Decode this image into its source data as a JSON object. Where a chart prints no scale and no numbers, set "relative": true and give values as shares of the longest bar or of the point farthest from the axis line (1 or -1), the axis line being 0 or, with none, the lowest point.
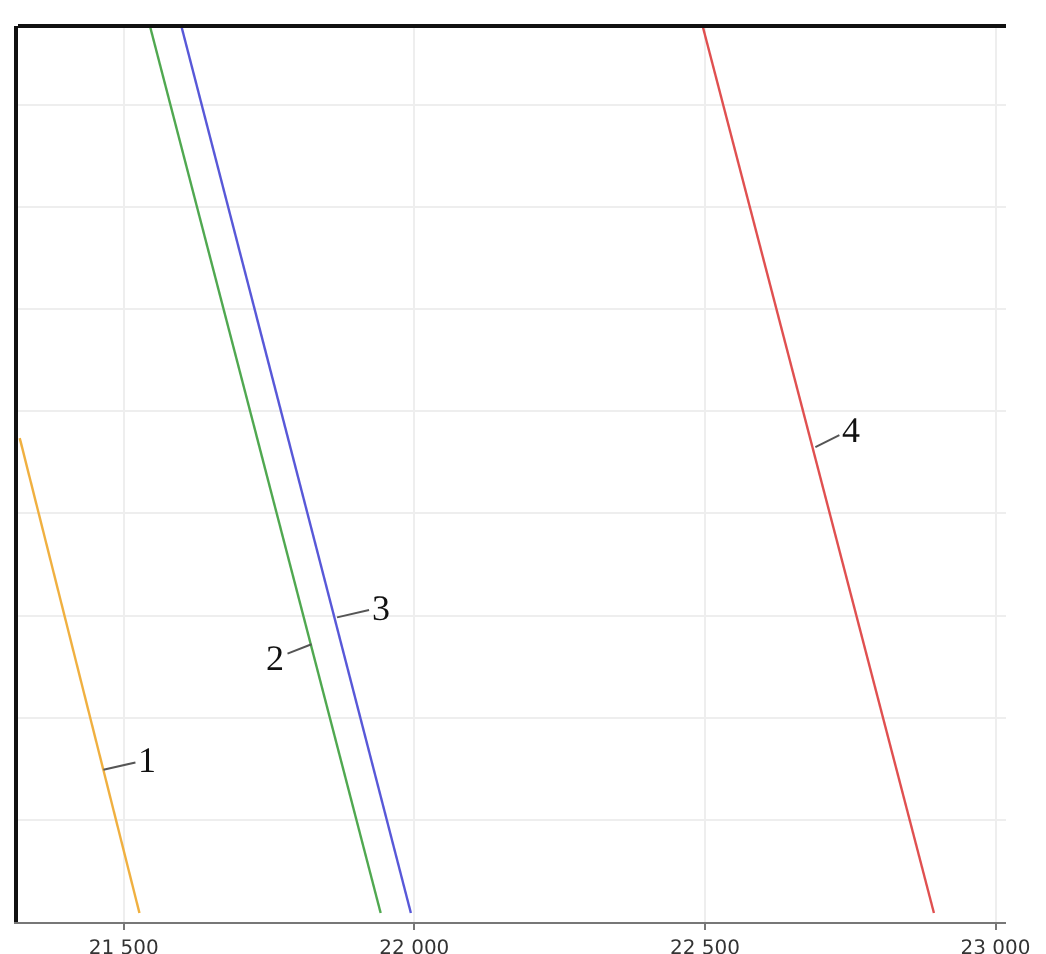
{
  "chart_data": {
    "type": "line",
    "relative": true,
    "grid": true,
    "marker": "none",
    "line_style": "solid",
    "xlim": [
      21318,
      23018
    ],
    "xticks": [
      {
        "value": 21500,
        "label": "21 500"
      },
      {
        "value": 22000,
        "label": "22 000"
      },
      {
        "value": 22500,
        "label": "22 500"
      },
      {
        "value": 23000,
        "label": "23 000"
      }
    ],
    "series": [
      {
        "color": "#f0b040",
        "x": [
          21321,
          21527
        ],
        "values": [
          0.54,
          0.01
        ]
      },
      {
        "color": "#50a850",
        "x": [
          21545,
          21942
        ],
        "values": [
          1,
          0.01
        ]
      },
      {
        "color": "#5858d8",
        "x": [
          21599,
          21994
        ],
        "values": [
          1,
          0.01
        ]
      },
      {
        "color": "#e05050",
        "x": [
          22496,
          22894
        ],
        "values": [
          1,
          0.01
        ]
      }
    ],
    "annotations": [
      {
        "text": "1",
        "x": 21465,
        "y": 0.17
      },
      {
        "text": "2",
        "x": 21823,
        "y": 0.31
      },
      {
        "text": "3",
        "x": 21867,
        "y": 0.34
      },
      {
        "text": "4",
        "x": 22690,
        "y": 0.53
      }
    ]
  }
}
